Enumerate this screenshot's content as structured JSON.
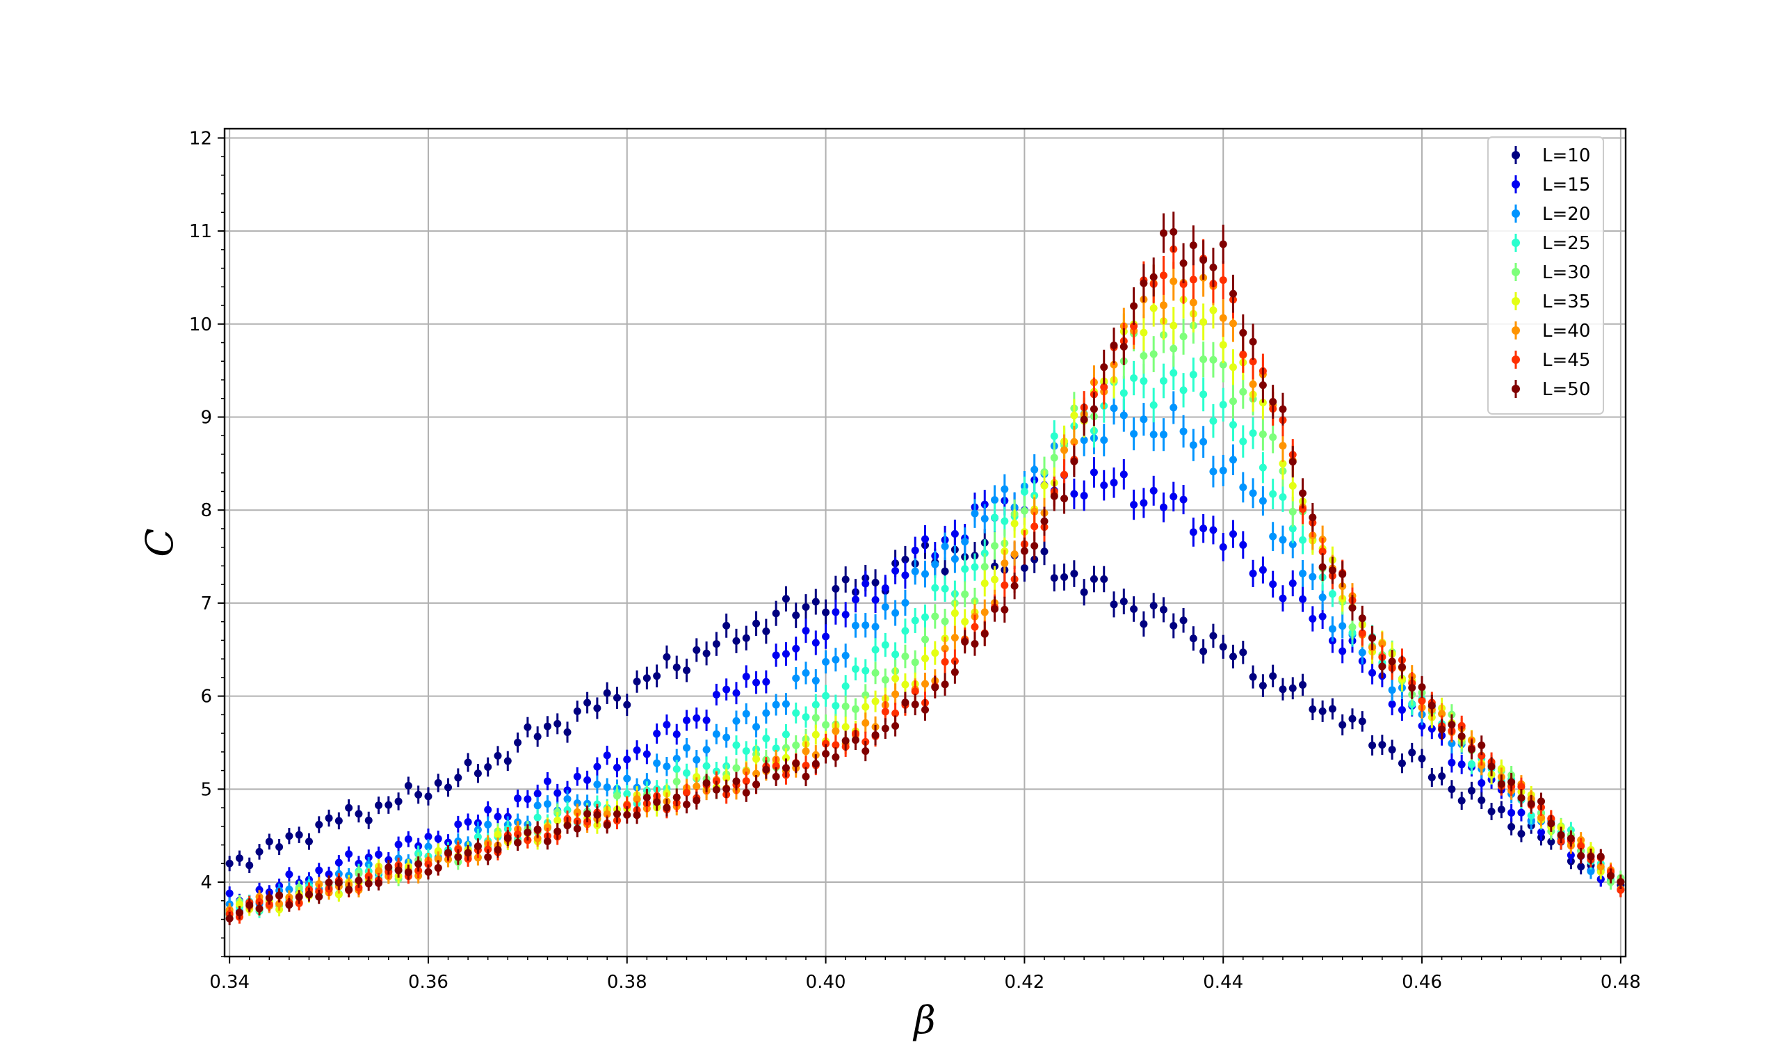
{
  "chart_data": {
    "type": "scatter",
    "title": "",
    "xlabel": "β",
    "ylabel": "C",
    "xlim": [
      0.3395,
      0.4805
    ],
    "ylim": [
      3.2,
      12.1
    ],
    "grid": true,
    "legend_position": "top-right",
    "error_bars": true,
    "x_ticks": [
      "0.34",
      "0.36",
      "0.38",
      "0.40",
      "0.42",
      "0.44",
      "0.46",
      "0.48"
    ],
    "y_ticks": [
      "4",
      "5",
      "6",
      "7",
      "8",
      "9",
      "10",
      "11",
      "12"
    ],
    "x_tick_values": [
      0.34,
      0.36,
      0.38,
      0.4,
      0.42,
      0.44,
      0.46,
      0.48
    ],
    "y_tick_values": [
      4,
      5,
      6,
      7,
      8,
      9,
      10,
      11,
      12
    ],
    "x": [
      0.34,
      0.345,
      0.35,
      0.355,
      0.36,
      0.365,
      0.37,
      0.375,
      0.38,
      0.385,
      0.39,
      0.395,
      0.4,
      0.405,
      0.41,
      0.415,
      0.42,
      0.425,
      0.43,
      0.435,
      0.44,
      0.445,
      0.45,
      0.455,
      0.46,
      0.465,
      0.47,
      0.475,
      0.48
    ],
    "series": [
      {
        "name": "L=10",
        "color": "#000080",
        "values": [
          4.2,
          4.4,
          4.65,
          4.8,
          5.0,
          5.2,
          5.55,
          5.8,
          6.05,
          6.35,
          6.6,
          6.85,
          7.05,
          7.25,
          7.5,
          7.5,
          7.45,
          7.3,
          7.0,
          6.8,
          6.5,
          6.15,
          5.9,
          5.55,
          5.25,
          4.9,
          4.6,
          4.3,
          3.9
        ]
      },
      {
        "name": "L=15",
        "color": "#0000f1",
        "values": [
          3.8,
          3.95,
          4.15,
          4.3,
          4.45,
          4.65,
          4.9,
          5.1,
          5.35,
          5.65,
          6.0,
          6.35,
          6.75,
          7.15,
          7.55,
          7.9,
          8.15,
          8.3,
          8.25,
          8.05,
          7.7,
          7.25,
          6.8,
          6.25,
          5.7,
          5.2,
          4.75,
          4.35,
          3.9
        ]
      },
      {
        "name": "L=20",
        "color": "#0094ff",
        "values": [
          3.7,
          3.85,
          4.0,
          4.15,
          4.3,
          4.5,
          4.7,
          4.9,
          5.05,
          5.3,
          5.6,
          5.9,
          6.35,
          6.8,
          7.3,
          7.85,
          8.3,
          8.7,
          8.95,
          8.9,
          8.5,
          7.9,
          7.0,
          6.4,
          5.85,
          5.35,
          4.85,
          4.4,
          3.95
        ]
      },
      {
        "name": "L=25",
        "color": "#29ffce",
        "values": [
          3.68,
          3.82,
          3.95,
          4.1,
          4.25,
          4.4,
          4.6,
          4.75,
          4.9,
          5.1,
          5.3,
          5.55,
          5.95,
          6.4,
          6.9,
          7.45,
          8.15,
          8.9,
          9.3,
          9.4,
          9.1,
          8.3,
          7.3,
          6.5,
          5.95,
          5.4,
          4.9,
          4.45,
          4.0
        ]
      },
      {
        "name": "L=30",
        "color": "#7dff7a",
        "values": [
          3.68,
          3.8,
          3.93,
          4.08,
          4.22,
          4.38,
          4.55,
          4.7,
          4.85,
          5.0,
          5.15,
          5.35,
          5.7,
          6.1,
          6.6,
          7.2,
          8.0,
          8.9,
          9.6,
          9.9,
          9.55,
          8.7,
          7.4,
          6.55,
          6.0,
          5.45,
          4.95,
          4.45,
          4.0
        ]
      },
      {
        "name": "L=35",
        "color": "#e4ff13",
        "values": [
          3.68,
          3.8,
          3.92,
          4.07,
          4.2,
          4.36,
          4.52,
          4.67,
          4.8,
          4.95,
          5.1,
          5.28,
          5.55,
          5.9,
          6.35,
          7.0,
          7.85,
          8.85,
          9.8,
          10.2,
          9.9,
          8.9,
          7.5,
          6.6,
          6.0,
          5.45,
          4.95,
          4.45,
          4.0
        ]
      },
      {
        "name": "L=40",
        "color": "#ff9400",
        "values": [
          3.68,
          3.8,
          3.92,
          4.06,
          4.19,
          4.35,
          4.5,
          4.65,
          4.78,
          4.92,
          5.06,
          5.22,
          5.45,
          5.75,
          6.15,
          6.8,
          7.65,
          8.75,
          9.9,
          10.5,
          10.2,
          9.05,
          7.55,
          6.6,
          6.0,
          5.45,
          4.95,
          4.45,
          4.0
        ]
      },
      {
        "name": "L=45",
        "color": "#ff3000",
        "values": [
          3.68,
          3.8,
          3.92,
          4.05,
          4.18,
          4.34,
          4.49,
          4.63,
          4.76,
          4.9,
          5.03,
          5.18,
          5.38,
          5.65,
          6.05,
          6.65,
          7.5,
          8.65,
          9.95,
          10.7,
          10.4,
          9.15,
          7.55,
          6.6,
          6.0,
          5.45,
          4.95,
          4.45,
          4.0
        ]
      },
      {
        "name": "L=50",
        "color": "#800000",
        "values": [
          3.68,
          3.8,
          3.92,
          4.05,
          4.18,
          4.33,
          4.48,
          4.62,
          4.75,
          4.88,
          5.01,
          5.15,
          5.33,
          5.58,
          5.95,
          6.55,
          7.4,
          8.55,
          10.0,
          10.95,
          10.6,
          9.2,
          7.55,
          6.6,
          6.0,
          5.45,
          4.95,
          4.45,
          4.0
        ]
      }
    ]
  }
}
